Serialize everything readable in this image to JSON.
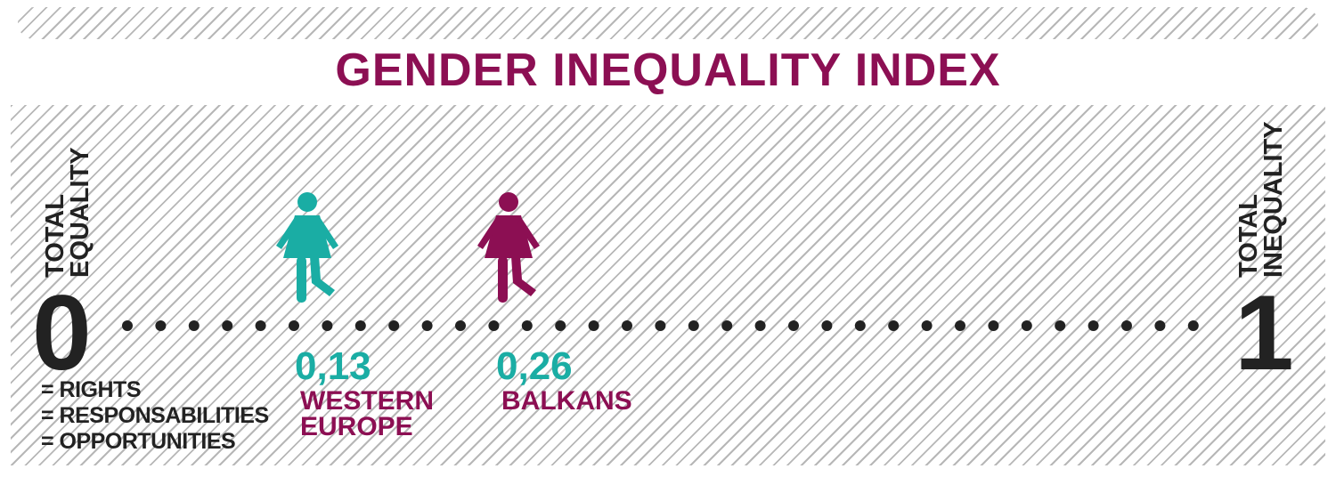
{
  "title": "GENDER INEQUALITY INDEX",
  "scale": {
    "min_value": "0",
    "max_value": "1",
    "min_label": [
      "TOTAL",
      "EQUALITY"
    ],
    "max_label": [
      "TOTAL",
      "INEQUALITY"
    ],
    "min_notes": [
      "= RIGHTS",
      "= RESPONSABILITIES",
      "= OPPORTUNITIES"
    ]
  },
  "markers": [
    {
      "value": 0.13,
      "value_label": "0,13",
      "region_lines": [
        "WESTERN",
        "EUROPE"
      ],
      "icon": "woman-figure-icon",
      "color": "#1aada4"
    },
    {
      "value": 0.26,
      "value_label": "0,26",
      "region_lines": [
        "BALKANS"
      ],
      "icon": "woman-figure-icon",
      "color": "#8c0f53"
    }
  ],
  "colors": {
    "title": "#8c0f53",
    "teal": "#1aada4",
    "dark": "#222222",
    "hatch": "#b7b7b7"
  }
}
